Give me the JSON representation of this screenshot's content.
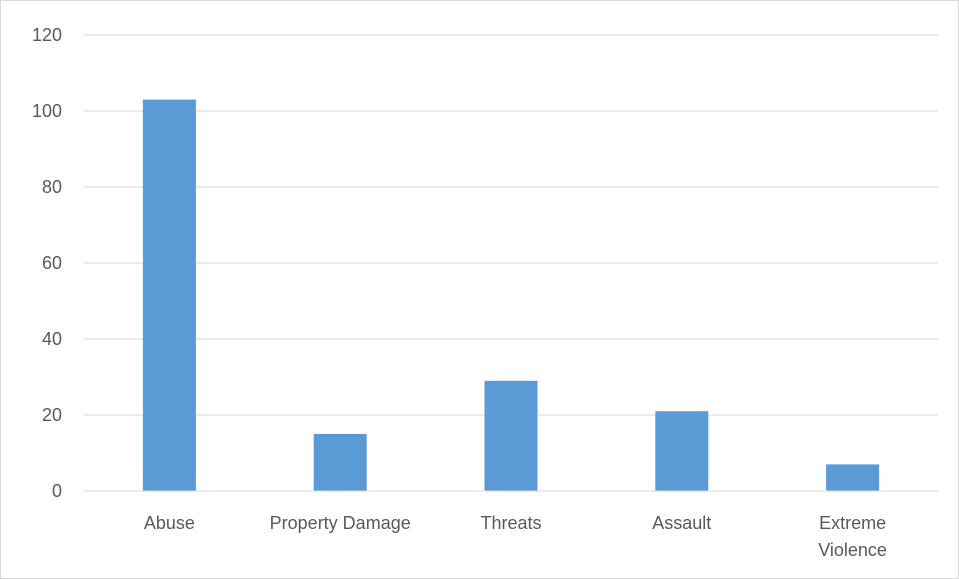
{
  "chart_data": {
    "type": "bar",
    "title": "",
    "xlabel": "",
    "ylabel": "",
    "categories": [
      "Abuse",
      "Property Damage",
      "Threats",
      "Assault",
      "Extreme Violence"
    ],
    "category_lines": [
      [
        "Abuse"
      ],
      [
        "Property Damage"
      ],
      [
        "Threats"
      ],
      [
        "Assault"
      ],
      [
        "Extreme",
        "Violence"
      ]
    ],
    "series": [
      {
        "values": [
          103,
          15,
          29,
          21,
          7
        ]
      }
    ],
    "ylim": [
      0,
      120
    ],
    "yticks": [
      0,
      20,
      40,
      60,
      80,
      100,
      120
    ],
    "grid": true,
    "legend": "none",
    "bar_color": "#5b9bd5",
    "grid_color": "#d9d9d9",
    "axis_color": "#d9d9d9"
  }
}
